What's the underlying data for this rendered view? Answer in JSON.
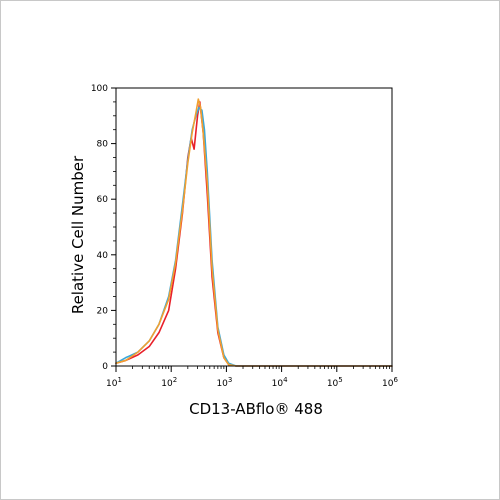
{
  "chart_data": {
    "type": "line",
    "title": "",
    "xlabel": "CD13-ABflo® 488",
    "ylabel": "Relative Cell Number",
    "x_scale": "log",
    "xlim": [
      10,
      1000000
    ],
    "ylim": [
      0,
      100
    ],
    "x_ticks": [
      {
        "value": 10,
        "base": "10",
        "exp": "1"
      },
      {
        "value": 100,
        "base": "10",
        "exp": "2"
      },
      {
        "value": 1000,
        "base": "10",
        "exp": "3"
      },
      {
        "value": 10000,
        "base": "10",
        "exp": "4"
      },
      {
        "value": 100000,
        "base": "10",
        "exp": "5"
      },
      {
        "value": 1000000,
        "base": "10",
        "exp": "6"
      }
    ],
    "y_ticks": [
      "0",
      "20",
      "40",
      "60",
      "80",
      "100"
    ],
    "grid": false,
    "legend": "none",
    "series": [
      {
        "color": "#e8202a",
        "x": [
          10,
          15,
          25,
          40,
          60,
          90,
          120,
          160,
          200,
          230,
          260,
          300,
          330,
          380,
          450,
          550,
          700,
          900,
          1100,
          1500,
          3000,
          10000,
          100000,
          1000000
        ],
        "y": [
          1,
          2,
          4,
          7,
          12,
          20,
          35,
          55,
          75,
          82,
          78,
          90,
          95,
          84,
          62,
          32,
          12,
          3,
          0.5,
          0,
          0,
          0,
          0,
          0
        ]
      },
      {
        "color": "#3aa7d9",
        "x": [
          10,
          15,
          25,
          40,
          60,
          90,
          120,
          160,
          200,
          240,
          280,
          320,
          360,
          400,
          450,
          550,
          700,
          900,
          1100,
          1500,
          3000,
          10000,
          100000,
          1000000
        ],
        "y": [
          1,
          3,
          5,
          9,
          15,
          25,
          38,
          58,
          74,
          85,
          90,
          93,
          92,
          85,
          70,
          38,
          14,
          4,
          1,
          0,
          0,
          0,
          0,
          0
        ]
      },
      {
        "color": "#f0a030",
        "x": [
          10,
          15,
          25,
          40,
          60,
          90,
          120,
          160,
          200,
          240,
          280,
          310,
          340,
          380,
          450,
          550,
          700,
          900,
          1100,
          1500,
          3000,
          10000,
          100000,
          1000000
        ],
        "y": [
          1,
          2,
          5,
          9,
          15,
          24,
          37,
          56,
          73,
          84,
          91,
          96,
          93,
          84,
          66,
          35,
          13,
          3,
          0.5,
          0,
          0,
          0,
          0,
          0
        ]
      }
    ]
  }
}
